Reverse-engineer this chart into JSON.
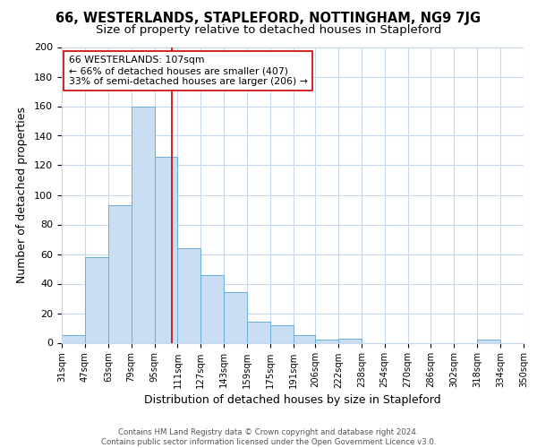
{
  "title": "66, WESTERLANDS, STAPLEFORD, NOTTINGHAM, NG9 7JG",
  "subtitle": "Size of property relative to detached houses in Stapleford",
  "xlabel": "Distribution of detached houses by size in Stapleford",
  "ylabel": "Number of detached properties",
  "bar_left_edges": [
    31,
    47,
    63,
    79,
    95,
    111,
    127,
    143,
    159,
    175,
    191,
    206,
    222,
    238,
    254,
    270,
    286,
    302,
    318,
    334
  ],
  "bar_widths": [
    16,
    16,
    16,
    16,
    16,
    16,
    16,
    16,
    16,
    16,
    15,
    16,
    16,
    16,
    16,
    16,
    16,
    16,
    16,
    16
  ],
  "bar_heights": [
    5,
    58,
    93,
    160,
    126,
    64,
    46,
    34,
    14,
    12,
    5,
    2,
    3,
    0,
    0,
    0,
    0,
    0,
    2,
    0
  ],
  "bar_color": "#c9ddf3",
  "bar_edge_color": "#6baed6",
  "x_tick_labels": [
    "31sqm",
    "47sqm",
    "63sqm",
    "79sqm",
    "95sqm",
    "111sqm",
    "127sqm",
    "143sqm",
    "159sqm",
    "175sqm",
    "191sqm",
    "206sqm",
    "222sqm",
    "238sqm",
    "254sqm",
    "270sqm",
    "286sqm",
    "302sqm",
    "318sqm",
    "334sqm",
    "350sqm"
  ],
  "x_tick_positions": [
    31,
    47,
    63,
    79,
    95,
    111,
    127,
    143,
    159,
    175,
    191,
    206,
    222,
    238,
    254,
    270,
    286,
    302,
    318,
    334,
    350
  ],
  "ylim": [
    0,
    200
  ],
  "yticks": [
    0,
    20,
    40,
    60,
    80,
    100,
    120,
    140,
    160,
    180,
    200
  ],
  "red_line_x": 107,
  "annotation_title": "66 WESTERLANDS: 107sqm",
  "annotation_line1": "← 66% of detached houses are smaller (407)",
  "annotation_line2": "33% of semi-detached houses are larger (206) →",
  "footer_line1": "Contains HM Land Registry data © Crown copyright and database right 2024.",
  "footer_line2": "Contains public sector information licensed under the Open Government Licence v3.0.",
  "bg_color": "#ffffff",
  "grid_color": "#c8d8ec",
  "title_fontsize": 10.5,
  "subtitle_fontsize": 9.5
}
